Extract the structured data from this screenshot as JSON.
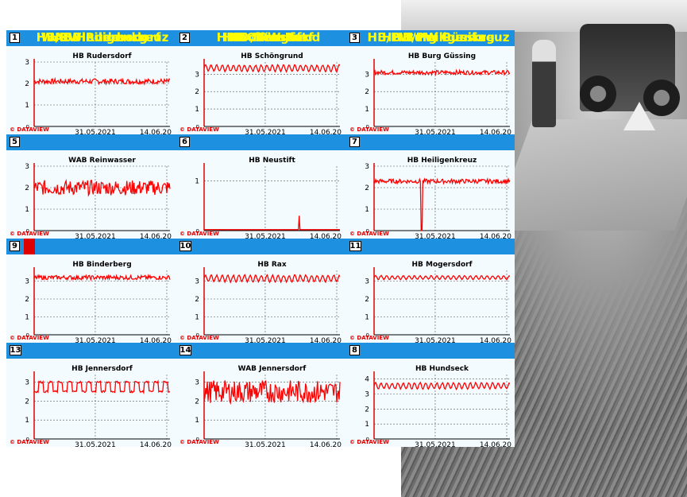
{
  "colors": {
    "header": "#1e90e0",
    "title": "#ffff00",
    "series": "#ff0000",
    "plot_bg": "#f4fbff"
  },
  "watermark": "© DATAVIEW",
  "header_rows": [
    [
      {
        "num": "1",
        "name": ""
      },
      {
        "num": "2",
        "name": "HB Olbendorf"
      },
      {
        "num": "3",
        "name": ""
      }
    ],
    [
      {
        "num": "5",
        "name": "HB/PW Rudersdorf"
      },
      {
        "num": "6",
        "name": "HB Schöngrund"
      },
      {
        "num": "7",
        "name": "HB Burg Güssing"
      }
    ],
    [
      {
        "num": "9",
        "name": "WAB Heiligenkreuz"
      },
      {
        "num": "10",
        "name": "HB Neustift"
      },
      {
        "num": "11",
        "name": "HB/PW Heiligenkreuz"
      }
    ],
    [
      {
        "num": "13",
        "name": "HB Binderberg"
      },
      {
        "num": "14",
        "name": "HB / PW Rax"
      },
      {
        "num": "8",
        "name": "HB/PW Punitz"
      }
    ]
  ],
  "chart_data": [
    {
      "type": "line",
      "title": "HB Rudersdorf",
      "x_ticks": [
        "31.05.2021",
        "14.06.20"
      ],
      "ylim": [
        0,
        3
      ],
      "y_ticks": [
        "3",
        "2",
        "1"
      ],
      "series": [
        {
          "base": 2.1,
          "amp": 0.12,
          "pattern": "noise",
          "spikes": []
        }
      ]
    },
    {
      "type": "line",
      "title": "HB Schöngrund",
      "x_ticks": [
        "31.05.2021",
        "14.06.20"
      ],
      "ylim": [
        0,
        3.7
      ],
      "y_ticks": [
        "3",
        "2",
        "1"
      ],
      "series": [
        {
          "base": 3.35,
          "amp": 0.18,
          "pattern": "wave",
          "spikes": []
        }
      ]
    },
    {
      "type": "line",
      "title": "HB Burg Güssing",
      "x_ticks": [
        "31.05.2021",
        "14.06.20"
      ],
      "ylim": [
        0,
        3.7
      ],
      "y_ticks": [
        "3",
        "2",
        "1"
      ],
      "series": [
        {
          "base": 3.1,
          "amp": 0.12,
          "pattern": "noise",
          "spikes": []
        }
      ]
    },
    {
      "type": "line",
      "title": "WAB Reinwasser",
      "x_ticks": [
        "31.05.2021",
        "14.06.20"
      ],
      "ylim": [
        0,
        3
      ],
      "y_ticks": [
        "3",
        "2",
        "1"
      ],
      "series": [
        {
          "base": 2.0,
          "amp": 0.35,
          "pattern": "noise",
          "spikes": []
        }
      ]
    },
    {
      "type": "line",
      "title": "HB Neustift",
      "x_ticks": [
        "31.05.2021",
        "14.06.20"
      ],
      "ylim": [
        0,
        1.3
      ],
      "y_ticks": [
        "1"
      ],
      "series": [
        {
          "base": 0.02,
          "amp": 0.0,
          "pattern": "flat",
          "spikes": [
            [
              0.7,
              0.3
            ]
          ]
        }
      ]
    },
    {
      "type": "line",
      "title": "HB Heiligenkreuz",
      "x_ticks": [
        "31.05.2021",
        "14.06.20"
      ],
      "ylim": [
        0,
        3
      ],
      "y_ticks": [
        "3",
        "2",
        "1"
      ],
      "series": [
        {
          "base": 2.3,
          "amp": 0.1,
          "pattern": "noise",
          "spikes": [
            [
              0.35,
              0.0
            ]
          ]
        }
      ]
    },
    {
      "type": "line",
      "title": "HB Binderberg",
      "x_ticks": [
        "31.05.2021",
        "14.06.20"
      ],
      "ylim": [
        0,
        3.6
      ],
      "y_ticks": [
        "3",
        "2",
        "1"
      ],
      "series": [
        {
          "base": 3.2,
          "amp": 0.12,
          "pattern": "noise",
          "spikes": []
        }
      ]
    },
    {
      "type": "line",
      "title": "HB Rax",
      "x_ticks": [
        "31.05.2021",
        "14.06.20"
      ],
      "ylim": [
        0,
        3.6
      ],
      "y_ticks": [
        "3",
        "2",
        "1"
      ],
      "series": [
        {
          "base": 3.15,
          "amp": 0.18,
          "pattern": "wave",
          "spikes": []
        }
      ]
    },
    {
      "type": "line",
      "title": "HB Mogersdorf",
      "x_ticks": [
        "31.05.2021",
        "14.06.20"
      ],
      "ylim": [
        0,
        3.6
      ],
      "y_ticks": [
        "3",
        "2",
        "1"
      ],
      "series": [
        {
          "base": 3.2,
          "amp": 0.1,
          "pattern": "wave",
          "spikes": []
        }
      ]
    },
    {
      "type": "line",
      "title": "HB Jennersdorf",
      "x_ticks": [
        "31.05.2021",
        "14.06.20"
      ],
      "ylim": [
        0,
        3.4
      ],
      "y_ticks": [
        "3",
        "2",
        "1"
      ],
      "series": [
        {
          "base": 2.75,
          "amp": 0.25,
          "pattern": "block",
          "spikes": []
        }
      ]
    },
    {
      "type": "line",
      "title": "WAB Jennersdorf",
      "x_ticks": [
        "31.05.2021",
        "14.06.20"
      ],
      "ylim": [
        0,
        3.4
      ],
      "y_ticks": [
        "3",
        "2",
        "1"
      ],
      "series": [
        {
          "base": 2.5,
          "amp": 0.6,
          "pattern": "noise",
          "spikes": []
        }
      ]
    },
    {
      "type": "line",
      "title": "HB Hundseck",
      "x_ticks": [
        "31.05.2021",
        "14.06.20"
      ],
      "ylim": [
        0,
        4.3
      ],
      "y_ticks": [
        "4",
        "3",
        "2",
        "1"
      ],
      "series": [
        {
          "base": 3.55,
          "amp": 0.2,
          "pattern": "wave",
          "spikes": []
        }
      ]
    }
  ]
}
